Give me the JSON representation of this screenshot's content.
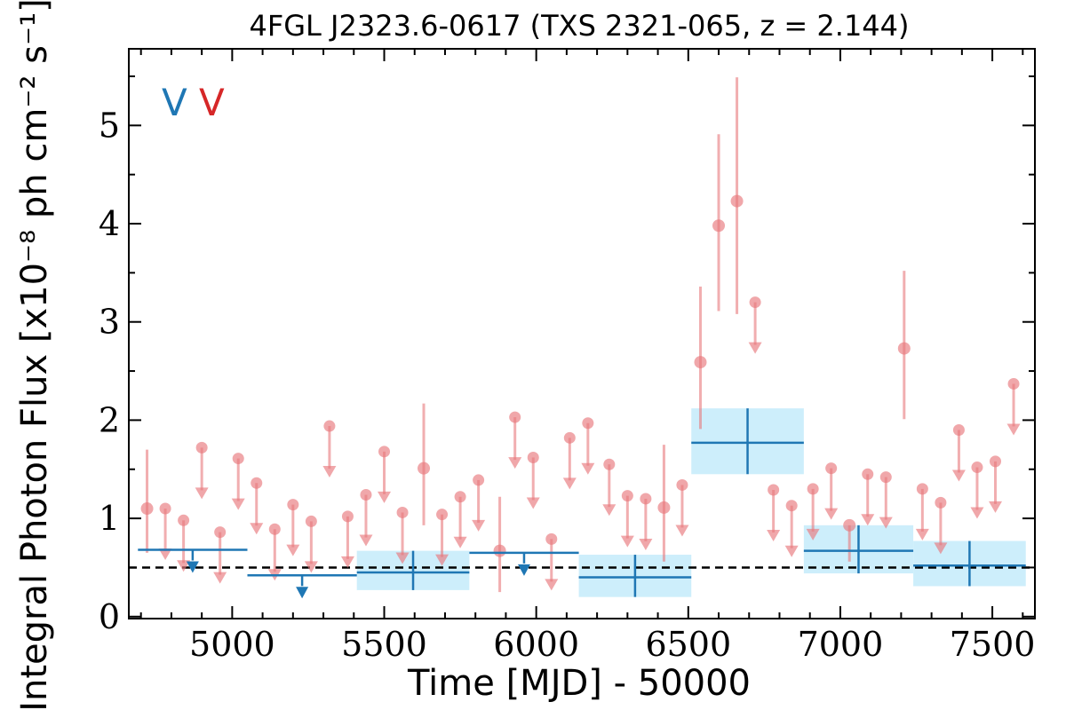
{
  "chart_data": {
    "type": "scatter",
    "title": "4FGL J2323.6-0617 (TXS 2321-065, z = 2.144)",
    "xlabel": "Time [MJD] - 50000",
    "ylabel": "Integral Photon Flux [x10⁻⁸ ph cm⁻² s⁻¹]",
    "xlim": [
      4660,
      7640
    ],
    "ylim": [
      -0.02,
      5.78
    ],
    "xticks": [
      5000,
      5500,
      6000,
      6500,
      7000,
      7500
    ],
    "yticks": [
      0,
      1,
      2,
      3,
      4,
      5
    ],
    "grid": false,
    "legend_markers": [
      {
        "glyph": "V",
        "color": "#1f77b4"
      },
      {
        "glyph": "V",
        "color": "#d62728"
      }
    ],
    "baseline": 0.5,
    "series": [
      {
        "color": "#e8787c",
        "detections": [
          {
            "x": 4720,
            "y": 1.1,
            "yerr_lo": 0.45,
            "yerr_hi": 0.6
          },
          {
            "x": 5880,
            "y": 0.67,
            "yerr_lo": 0.42,
            "yerr_hi": 0.55
          },
          {
            "x": 5630,
            "y": 1.51,
            "yerr_lo": 0.58,
            "yerr_hi": 0.66
          },
          {
            "x": 6420,
            "y": 1.11,
            "yerr_lo": 0.55,
            "yerr_hi": 0.64
          },
          {
            "x": 6540,
            "y": 2.59,
            "yerr_lo": 0.68,
            "yerr_hi": 0.77
          },
          {
            "x": 6600,
            "y": 3.98,
            "yerr_lo": 0.87,
            "yerr_hi": 0.93
          },
          {
            "x": 6660,
            "y": 4.23,
            "yerr_lo": 1.15,
            "yerr_hi": 1.26
          },
          {
            "x": 7030,
            "y": 0.93,
            "yerr_lo": 0.37,
            "yerr_hi": 0.0
          },
          {
            "x": 7210,
            "y": 2.73,
            "yerr_lo": 0.72,
            "yerr_hi": 0.79
          }
        ],
        "upper_limits": [
          {
            "x": 4780,
            "y": 1.1
          },
          {
            "x": 4840,
            "y": 0.98
          },
          {
            "x": 4900,
            "y": 1.72
          },
          {
            "x": 4960,
            "y": 0.86
          },
          {
            "x": 5020,
            "y": 1.61
          },
          {
            "x": 5080,
            "y": 1.36
          },
          {
            "x": 5140,
            "y": 0.89
          },
          {
            "x": 5200,
            "y": 1.14
          },
          {
            "x": 5260,
            "y": 0.97
          },
          {
            "x": 5320,
            "y": 1.94
          },
          {
            "x": 5380,
            "y": 1.02
          },
          {
            "x": 5440,
            "y": 1.24
          },
          {
            "x": 5500,
            "y": 1.68
          },
          {
            "x": 5560,
            "y": 1.06
          },
          {
            "x": 5690,
            "y": 1.04
          },
          {
            "x": 5750,
            "y": 1.22
          },
          {
            "x": 5810,
            "y": 1.39
          },
          {
            "x": 5930,
            "y": 2.03
          },
          {
            "x": 5990,
            "y": 1.62
          },
          {
            "x": 6050,
            "y": 0.79
          },
          {
            "x": 6110,
            "y": 1.82
          },
          {
            "x": 6170,
            "y": 1.97
          },
          {
            "x": 6240,
            "y": 1.55
          },
          {
            "x": 6300,
            "y": 1.23
          },
          {
            "x": 6360,
            "y": 1.2
          },
          {
            "x": 6480,
            "y": 1.34
          },
          {
            "x": 6720,
            "y": 3.2
          },
          {
            "x": 6780,
            "y": 1.29
          },
          {
            "x": 6840,
            "y": 1.13
          },
          {
            "x": 6910,
            "y": 1.3
          },
          {
            "x": 6970,
            "y": 1.51
          },
          {
            "x": 7090,
            "y": 1.45
          },
          {
            "x": 7150,
            "y": 1.42
          },
          {
            "x": 7270,
            "y": 1.3
          },
          {
            "x": 7330,
            "y": 1.16
          },
          {
            "x": 7390,
            "y": 1.9
          },
          {
            "x": 7450,
            "y": 1.52
          },
          {
            "x": 7510,
            "y": 1.58
          },
          {
            "x": 7570,
            "y": 2.37
          }
        ]
      },
      {
        "color": "#1f77b4",
        "band_color": "#cdeefb",
        "upper_limits": [
          {
            "x0": 4690,
            "x1": 5050,
            "y": 0.68
          },
          {
            "x0": 5050,
            "x1": 5410,
            "y": 0.42
          },
          {
            "x0": 5780,
            "x1": 6140,
            "y": 0.65
          }
        ],
        "bins": [
          {
            "x0": 5410,
            "x1": 5780,
            "y": 0.45,
            "y_lo": 0.27,
            "y_hi": 0.67
          },
          {
            "x0": 6140,
            "x1": 6510,
            "y": 0.4,
            "y_lo": 0.2,
            "y_hi": 0.63
          },
          {
            "x0": 6510,
            "x1": 6880,
            "y": 1.77,
            "y_lo": 1.45,
            "y_hi": 2.12
          },
          {
            "x0": 6880,
            "x1": 7240,
            "y": 0.67,
            "y_lo": 0.44,
            "y_hi": 0.93
          },
          {
            "x0": 7240,
            "x1": 7610,
            "y": 0.52,
            "y_lo": 0.31,
            "y_hi": 0.77
          }
        ]
      }
    ]
  }
}
